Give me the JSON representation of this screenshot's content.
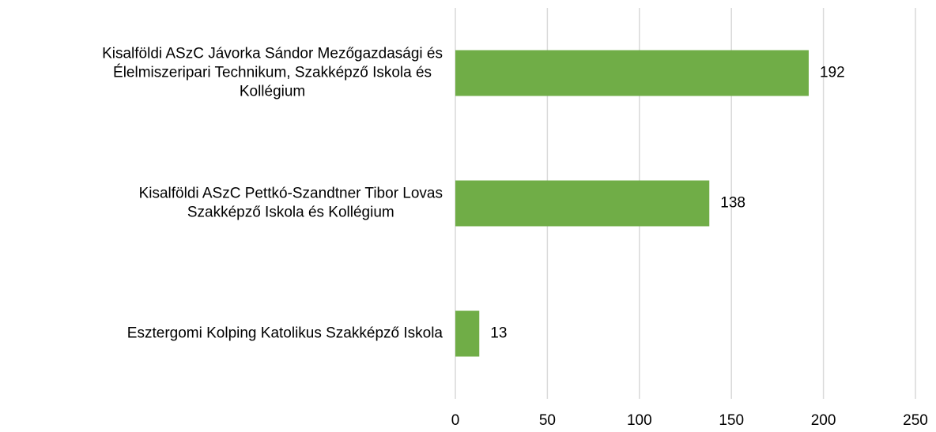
{
  "chart_data": {
    "type": "bar",
    "orientation": "horizontal",
    "categories": [
      "Kisalföldi ASzC Jávorka Sándor Mezőgazdasági és\nÉlelmiszeripari Technikum, Szakképző Iskola és\nKollégium",
      "Kisalföldi ASzC Pettkó-Szandtner Tibor Lovas\nSzakképző Iskola és Kollégium",
      "Esztergomi Kolping Katolikus Szakképző Iskola"
    ],
    "values": [
      192,
      138,
      13
    ],
    "color": "#70ad47",
    "xlim": [
      0,
      250
    ],
    "xticks": [
      0,
      50,
      100,
      150,
      200,
      250
    ],
    "grid": true
  }
}
